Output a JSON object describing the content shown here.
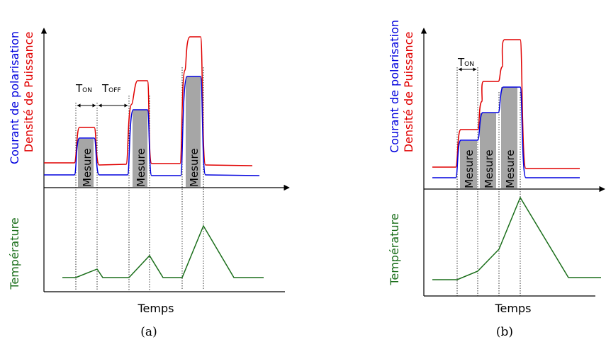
{
  "panels": [
    {
      "caption": "(a)",
      "ylabel_top_line1": "Courant de polarisation",
      "ylabel_top_line2": "Densité de Puissance",
      "ylabel_bottom": "Température",
      "xlabel": "Temps",
      "t_on": "T",
      "t_on_sub": "ON",
      "t_off": "T",
      "t_off_sub": "OFF",
      "measure_label": "Mesure"
    },
    {
      "caption": "(b)",
      "ylabel_top_line1": "Courant de polarisation",
      "ylabel_top_line2": "Densité de Puissance",
      "ylabel_bottom": "Température",
      "xlabel": "Temps",
      "t_on": "T",
      "t_on_sub": "ON",
      "measure_label": "Mesure"
    }
  ],
  "colors": {
    "courant": "#0000dd",
    "puissance": "#e00000",
    "temperature": "#1a6e1a",
    "measure_fill": "#a6a6a6",
    "axis": "#000000"
  }
}
